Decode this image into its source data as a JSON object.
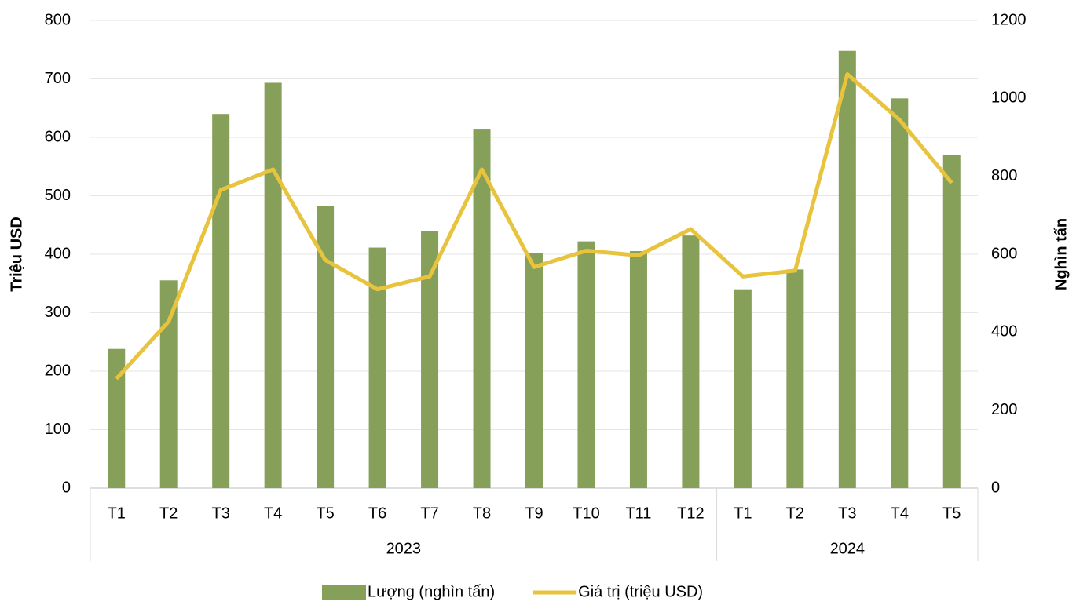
{
  "chart_data": {
    "type": "bar_line",
    "ylabel": "Triệu USD",
    "y2label": "Nghìn tấn",
    "groups": [
      {
        "label": "2023",
        "categories": [
          "T1",
          "T2",
          "T3",
          "T4",
          "T5",
          "T6",
          "T7",
          "T8",
          "T9",
          "T10",
          "T11",
          "T12"
        ]
      },
      {
        "label": "2024",
        "categories": [
          "T1",
          "T2",
          "T3",
          "T4",
          "T5"
        ]
      }
    ],
    "series": [
      {
        "name": "Lượng (nghìn tấn)",
        "type": "bar",
        "axis": "y2",
        "color": "#86a05a",
        "values": [
          357,
          533,
          960,
          1040,
          723,
          617,
          660,
          920,
          603,
          633,
          608,
          648,
          510,
          561,
          1122,
          1000,
          855
        ]
      },
      {
        "name": "Giá trị (triệu USD)",
        "type": "line",
        "axis": "y",
        "color": "#e8c33e",
        "values": [
          187,
          285,
          510,
          545,
          390,
          340,
          362,
          545,
          378,
          406,
          398,
          443,
          362,
          372,
          708,
          630,
          522
        ]
      }
    ],
    "ylim": [
      0,
      800
    ],
    "yticks": [
      0,
      100,
      200,
      300,
      400,
      500,
      600,
      700,
      800
    ],
    "y2lim": [
      0,
      1200
    ],
    "y2ticks": [
      0,
      200,
      400,
      600,
      800,
      1000,
      1200
    ],
    "grid": true,
    "legend": "bottom"
  }
}
